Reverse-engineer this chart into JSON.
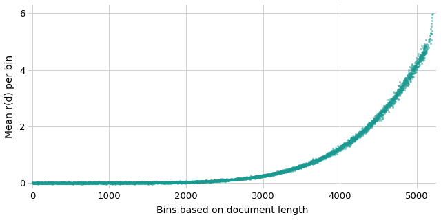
{
  "title": "",
  "xlabel": "Bins based on document length",
  "ylabel": "Mean r(d) per bin",
  "xlim": [
    -50,
    5250
  ],
  "ylim": [
    -0.2,
    6.3
  ],
  "xticks": [
    0,
    1000,
    2000,
    3000,
    4000,
    5000
  ],
  "yticks": [
    0,
    2,
    4,
    6
  ],
  "dot_color": "#1a9990",
  "dot_alpha": 0.5,
  "dot_size": 5,
  "background_color": "#ffffff",
  "grid_color": "#d0d0d0",
  "n_points": 5200,
  "curve_power": 5.5,
  "noise_scale": 0.025,
  "seed": 42
}
